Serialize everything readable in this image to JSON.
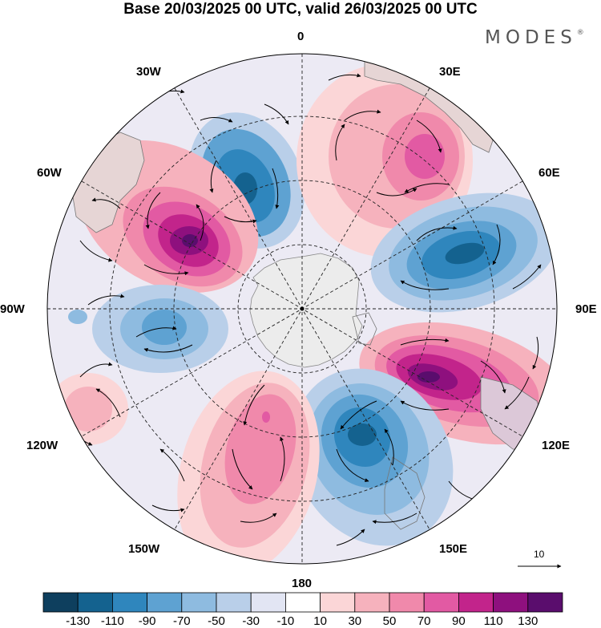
{
  "title": "Base 20/03/2025 00 UTC, valid 26/03/2025 00 UTC",
  "brand": {
    "name": "MODES",
    "mark": "®"
  },
  "map": {
    "projection": "south-polar-stereographic",
    "longitude_labels": {
      "top": "0",
      "top_right": "30E",
      "upper_right": "60E",
      "right": "90E",
      "lower_right": "120E",
      "bottom_right": "150E",
      "bottom": "180",
      "bottom_left": "150W",
      "lower_left": "120W",
      "left": "90W",
      "upper_left": "60W",
      "top_left": "30W"
    },
    "reference_vector": "10",
    "anomaly_centers": [
      {
        "sign": "negative",
        "level": -110,
        "location": "near 30W"
      },
      {
        "sign": "positive",
        "level": 130,
        "location": "near 55W"
      },
      {
        "sign": "positive",
        "level": 70,
        "location": "near 30E"
      },
      {
        "sign": "negative",
        "level": -110,
        "location": "near 65E"
      },
      {
        "sign": "positive",
        "level": 130,
        "location": "near 110E"
      },
      {
        "sign": "negative",
        "level": -110,
        "location": "near 150E"
      },
      {
        "sign": "positive",
        "level": 70,
        "location": "near 165W"
      },
      {
        "sign": "negative",
        "level": -70,
        "location": "near 90W"
      },
      {
        "sign": "positive",
        "level": 30,
        "location": "near 120W"
      }
    ]
  },
  "colorbar": {
    "levels": [
      "-130",
      "-110",
      "-90",
      "-70",
      "-50",
      "-30",
      "-10",
      "10",
      "30",
      "50",
      "70",
      "90",
      "110",
      "130"
    ],
    "colors": [
      "#0e3f5e",
      "#14628f",
      "#2f86bd",
      "#5ea2d2",
      "#8ebbe0",
      "#b9cfe9",
      "#e2e5f3",
      "#ffffff",
      "#fbd6d7",
      "#f6b2bd",
      "#f089ab",
      "#e25aa3",
      "#c2248b",
      "#8e107e",
      "#5a0d6d"
    ]
  }
}
